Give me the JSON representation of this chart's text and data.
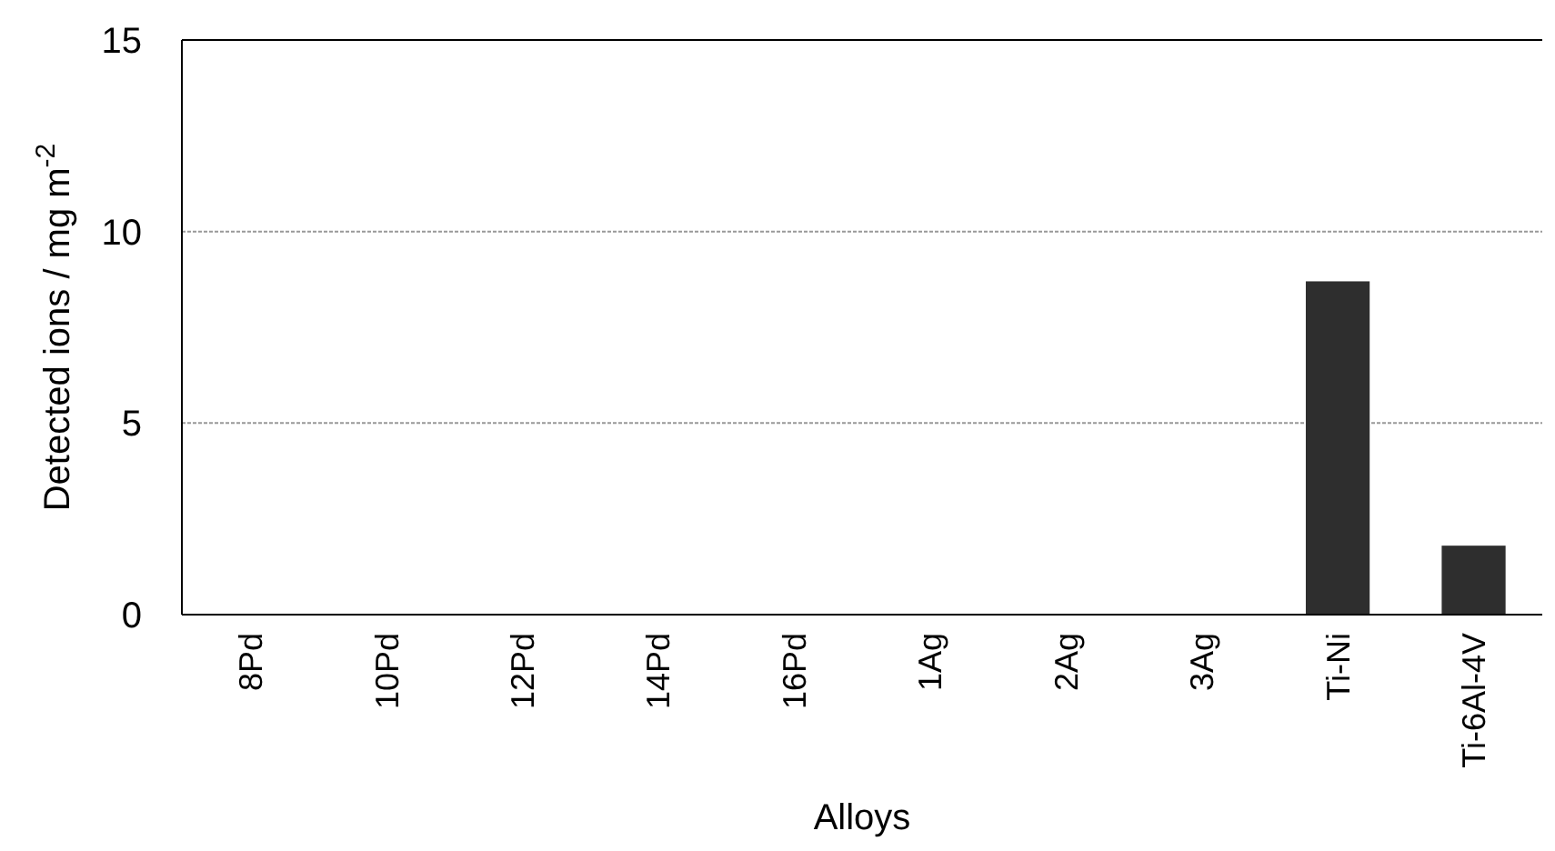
{
  "chart_data": {
    "type": "bar",
    "xlabel": "Alloys",
    "ylabel": "Detected ions / mg m$^{-2}$",
    "categories": [
      "8Pd",
      "10Pd",
      "12Pd",
      "14Pd",
      "16Pd",
      "1Ag",
      "2Ag",
      "3Ag",
      "Ti-Ni",
      "Ti-6Al-4V"
    ],
    "values": [
      0,
      0,
      0,
      0,
      0,
      0,
      0,
      0,
      8.7,
      1.8
    ],
    "color": "#2e2e2e",
    "ylim": [
      0,
      15
    ],
    "yticks": [
      0,
      5,
      10,
      15
    ],
    "grid": "y"
  }
}
